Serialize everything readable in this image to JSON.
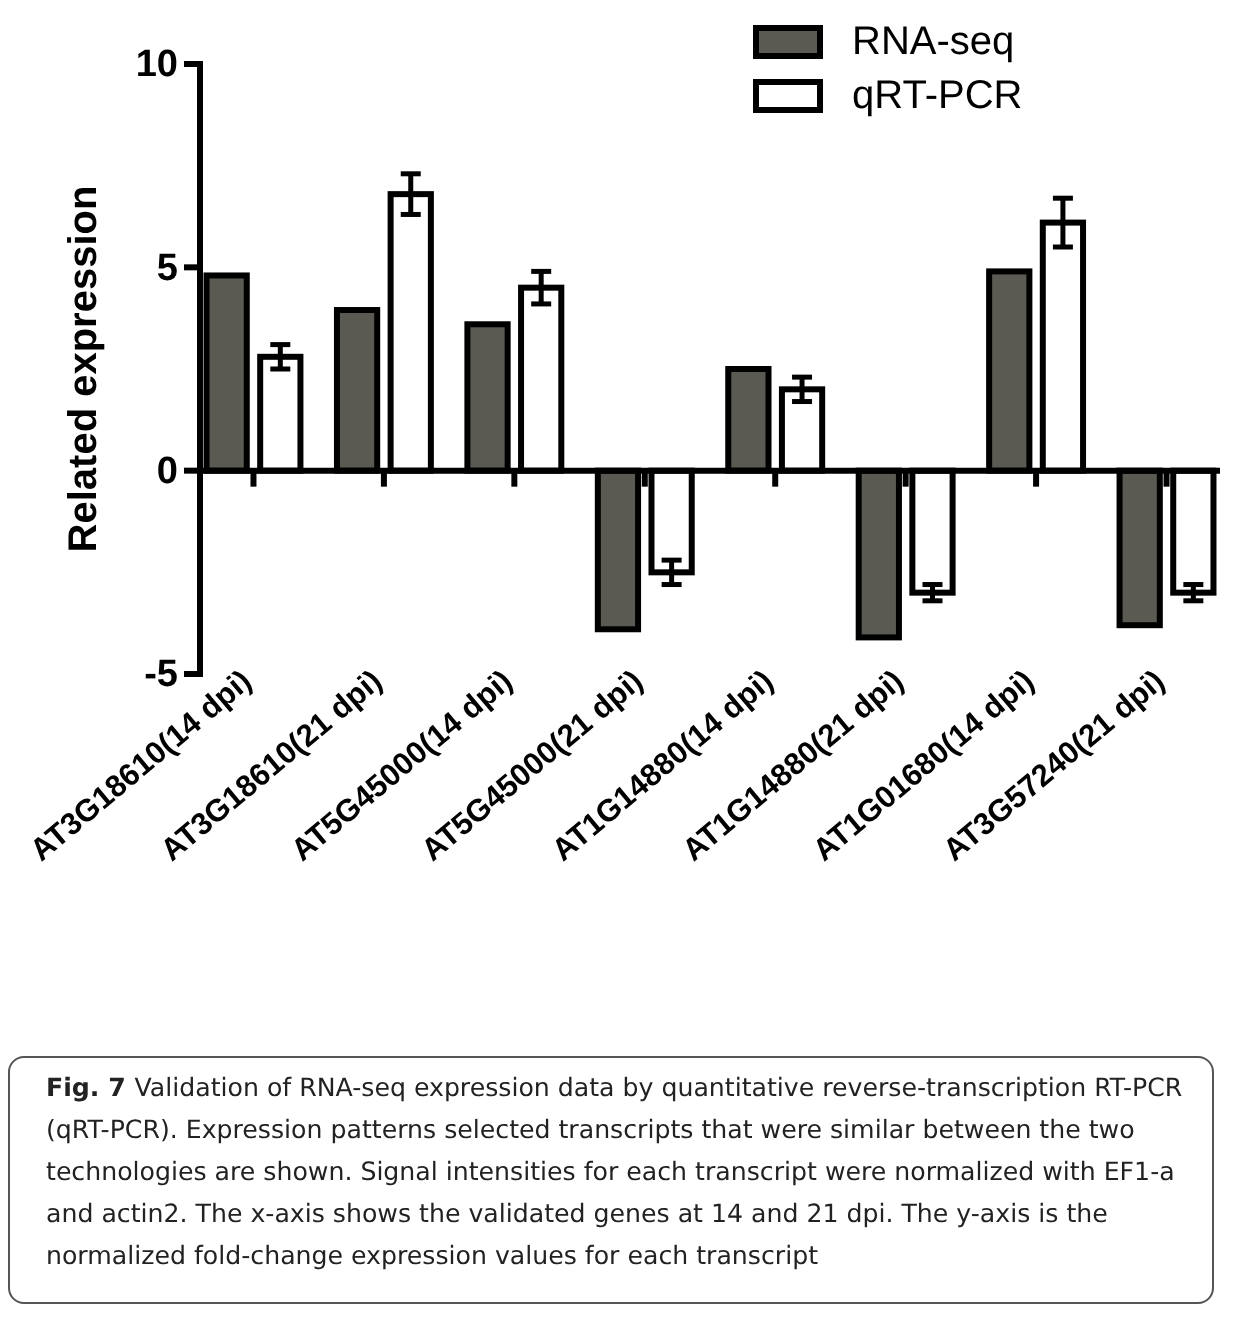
{
  "chart_data": {
    "type": "bar",
    "title": "Fig. 7",
    "ylabel": "Related expression",
    "categories": [
      "AT3G18610(14 dpi)",
      "AT3G18610(21 dpi)",
      "AT5G45000(14 dpi)",
      "AT5G45000(21 dpi)",
      "AT1G14880(14 dpi)",
      "AT1G14880(21 dpi)",
      "AT1G01680(14 dpi)",
      "AT3G57240(21 dpi)"
    ],
    "series": [
      {
        "name": "RNA-seq",
        "color": "#5a5a52",
        "values": [
          4.8,
          3.95,
          3.6,
          -3.9,
          2.5,
          -4.1,
          4.9,
          -3.8
        ]
      },
      {
        "name": "qRT-PCR",
        "color": "#ffffff",
        "values": [
          2.8,
          6.8,
          4.5,
          -2.5,
          2.0,
          -3.0,
          6.1,
          -3.0
        ],
        "errors": [
          0.3,
          0.5,
          0.4,
          0.3,
          0.3,
          0.2,
          0.6,
          0.2
        ]
      }
    ],
    "ylim": [
      -5,
      10
    ],
    "yticks": [
      -5,
      0,
      5,
      10
    ],
    "legend": "top right",
    "annotations": [
      "Validation of RNA-seq expression data by quantitative reverse-transcription RT-PCR (qRT-PCR). Expression patterns selected transcripts that were similar between the two technologies are shown. Signal intensities for each transcript were normalized with EF1-a and actin2. The x-axis shows the validated genes at 14 and 21 dpi. The y-axis is the normalized fold-change expression values for each transcript"
    ]
  }
}
